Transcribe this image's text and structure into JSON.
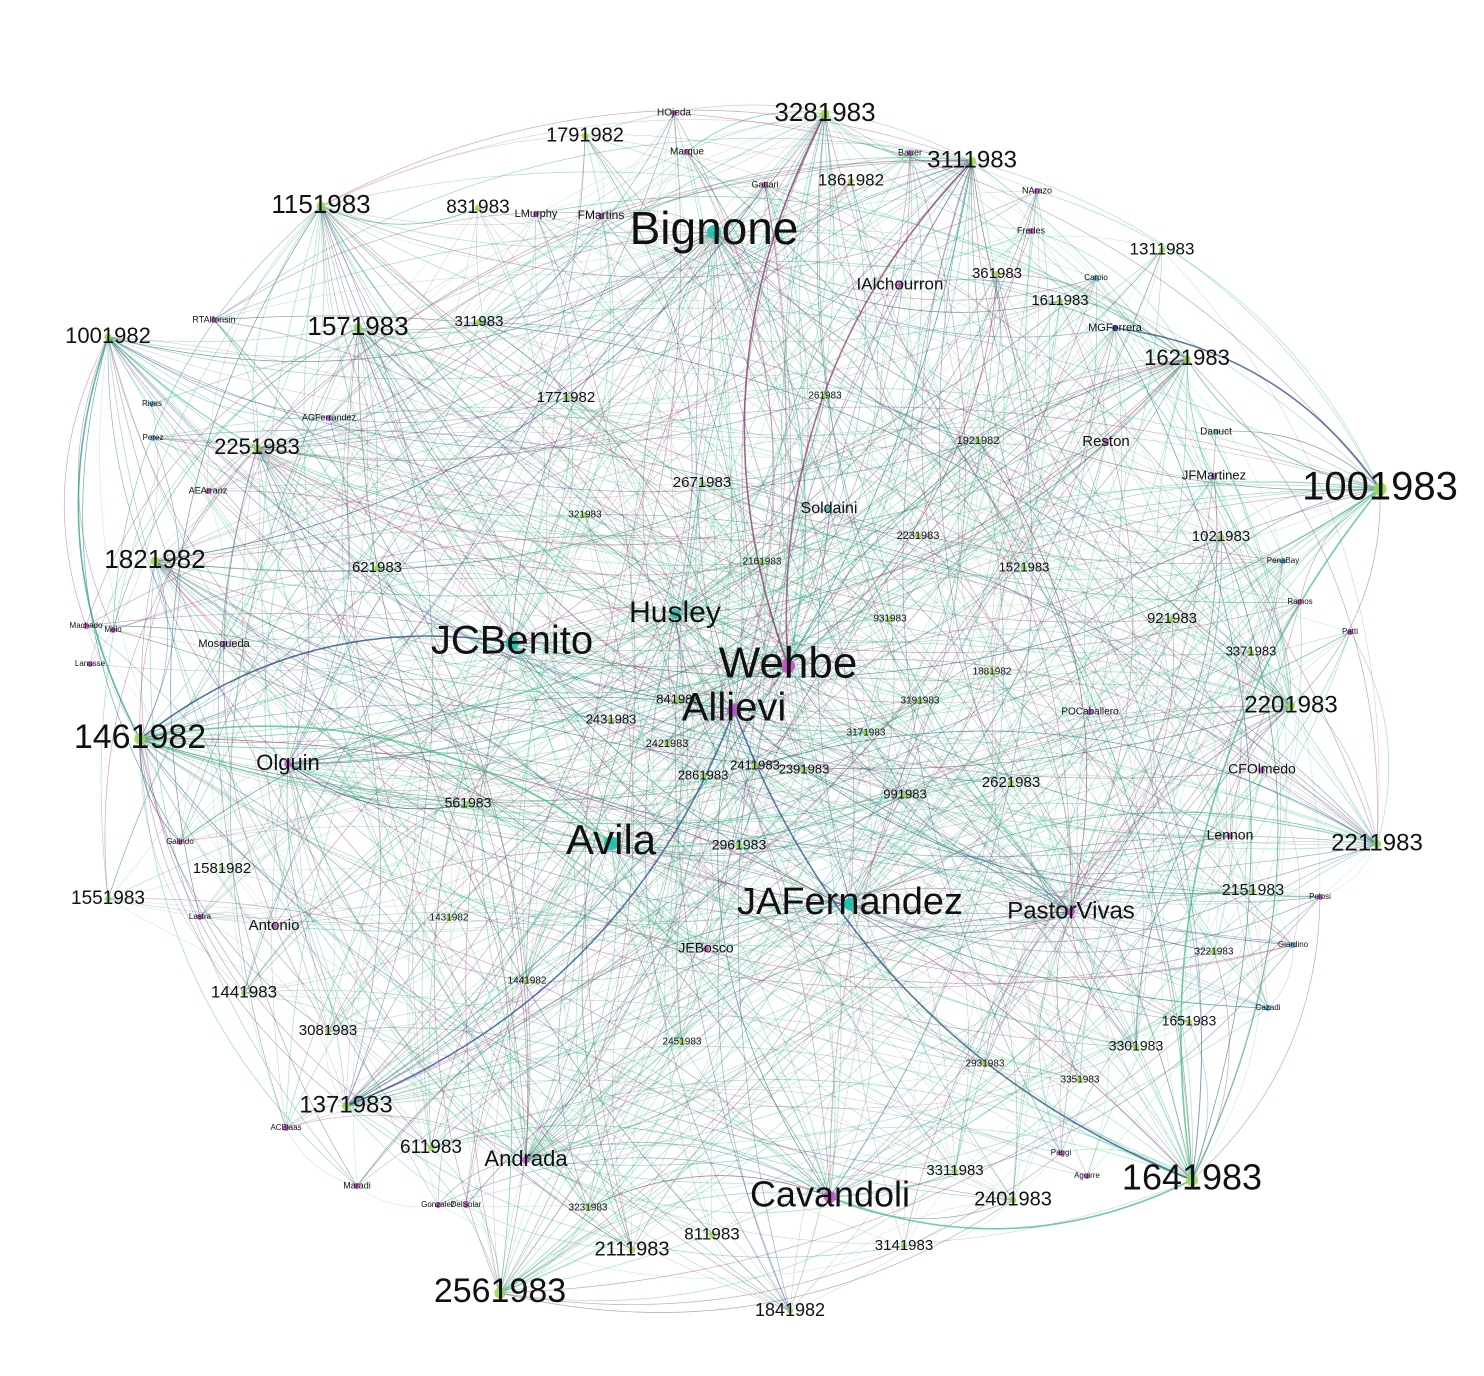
{
  "graph": {
    "colors": {
      "background": "#ffffff",
      "label": "#111111",
      "edge_green": "#3fbf7f",
      "edge_teal": "#2a9d8f",
      "edge_purple": "#8e3b6e",
      "edge_blue": "#2c4a8a",
      "node_green": "#9bd94e",
      "node_teal": "#19c2b0",
      "node_purple": "#c04fc4",
      "node_blue": "#3a43c9",
      "node_cyan": "#4fa7d9"
    },
    "hubs": [
      {
        "label": "Bignone",
        "kind": "large"
      },
      {
        "label": "Wehbe",
        "kind": "large"
      },
      {
        "label": "Allievi",
        "kind": "large"
      },
      {
        "label": "JCBenito",
        "kind": "large"
      },
      {
        "label": "Avila",
        "kind": "large"
      },
      {
        "label": "JAFernandez",
        "kind": "large"
      },
      {
        "label": "Cavandoli",
        "kind": "large"
      },
      {
        "label": "1001983",
        "kind": "large"
      },
      {
        "label": "1461982",
        "kind": "large"
      },
      {
        "label": "1641983",
        "kind": "large"
      },
      {
        "label": "2561983",
        "kind": "large"
      },
      {
        "label": "3281983",
        "kind": "medium"
      },
      {
        "label": "3111983",
        "kind": "medium"
      },
      {
        "label": "Husley",
        "kind": "medium"
      },
      {
        "label": "1571983",
        "kind": "medium"
      },
      {
        "label": "1151983",
        "kind": "medium"
      },
      {
        "label": "1821982",
        "kind": "medium"
      },
      {
        "label": "2201983",
        "kind": "medium"
      },
      {
        "label": "2211983",
        "kind": "medium"
      },
      {
        "label": "1621983",
        "kind": "medium"
      },
      {
        "label": "1371983",
        "kind": "medium"
      },
      {
        "label": "2251983",
        "kind": "medium"
      },
      {
        "label": "1001982",
        "kind": "medium"
      },
      {
        "label": "PastorVivas",
        "kind": "medium"
      },
      {
        "label": "Andrada",
        "kind": "medium"
      },
      {
        "label": "Olguin",
        "kind": "medium"
      }
    ],
    "nodes": [
      "1791982",
      "831983",
      "1861982",
      "IAlchourron",
      "311983",
      "1771982",
      "2671983",
      "Soldaini",
      "361983",
      "1311983",
      "1611983",
      "261983",
      "1921982",
      "Reston",
      "JFMartinez",
      "1021983",
      "2231983",
      "1521983",
      "921983",
      "621983",
      "321983",
      "2161983",
      "931983",
      "1881982",
      "3191983",
      "3371983",
      "POCaballero",
      "CFOlmedo",
      "2431983",
      "2421983",
      "841983",
      "3171983",
      "2411983",
      "2391983",
      "2861983",
      "991983",
      "2621983",
      "561983",
      "2961983",
      "Lennon",
      "1581982",
      "1551983",
      "Antonio",
      "1431982",
      "JEBosco",
      "2151983",
      "3221983",
      "1441983",
      "3081983",
      "1441982",
      "1651983",
      "2451983",
      "3301983",
      "2931983",
      "3351983",
      "611983",
      "3311983",
      "2401983",
      "3231983",
      "811983",
      "2111983",
      "3141983",
      "1841982",
      "Mosqueda",
      "MGFerrera",
      "FMartins",
      "LMurphy",
      "HOjeda",
      "Marque",
      "Gattari",
      "Bauer",
      "NArazo",
      "Fredes",
      "RTAlfonsin",
      "AGFerrandez",
      "AEArranz",
      "Danuct",
      "PenaBay",
      "Giardino",
      "Cazadi",
      "Gonzalez",
      "DelSolar",
      "Maradi",
      "ACBlaas",
      "Aguirre",
      "Lastra",
      "Galindo",
      "Paggi",
      "Pelosi",
      "Lanusse",
      "Patti",
      "Machado",
      "Melo",
      "Rivas",
      "Perez",
      "Carpio",
      "Ramos"
    ],
    "caption": ""
  }
}
